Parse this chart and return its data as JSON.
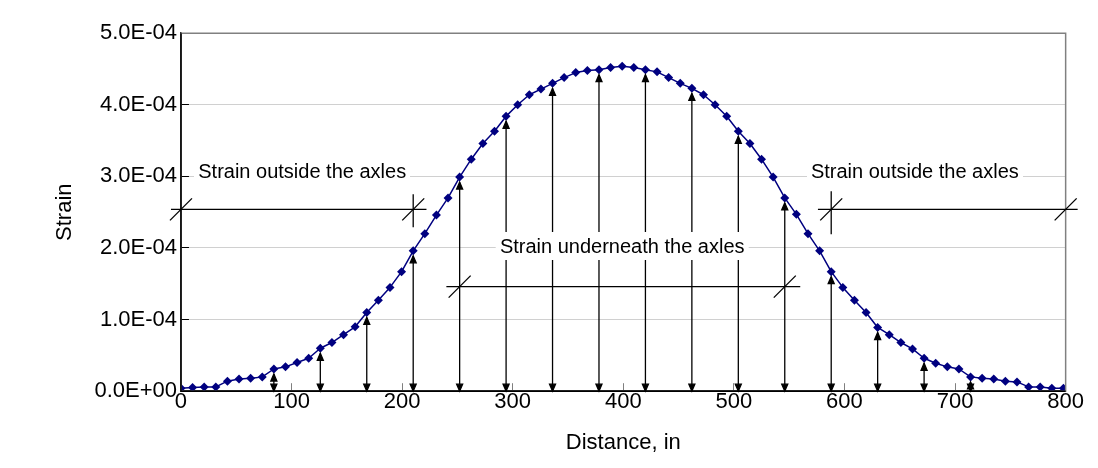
{
  "chart_data": {
    "type": "line",
    "xlabel": "Distance, in",
    "ylabel": "Strain",
    "x": [
      0,
      10.5,
      21,
      31.5,
      42,
      52.5,
      63,
      73.5,
      84,
      94.5,
      105,
      115.5,
      126,
      136.5,
      147,
      157.5,
      168,
      178.5,
      189,
      199.5,
      210,
      220.5,
      231,
      241.5,
      252,
      262.5,
      273,
      283.5,
      294,
      304.5,
      315,
      325.5,
      336,
      346.5,
      357,
      367.5,
      378,
      388.5,
      399,
      409.5,
      420,
      430.5,
      441,
      451.5,
      462,
      472.5,
      483,
      493.5,
      504,
      514.5,
      525,
      535.5,
      546,
      556.5,
      567,
      577.5,
      588,
      598.5,
      609,
      619.5,
      630,
      640.5,
      651,
      661.5,
      672,
      682.5,
      693,
      703.5,
      714,
      724.5,
      735,
      745.5,
      756,
      766.5,
      777,
      787.5,
      798
    ],
    "series": [
      {
        "color": "#000080",
        "values": [
          4e-06,
          5e-06,
          6e-06,
          6e-06,
          1.4e-05,
          1.7e-05,
          1.8e-05,
          2e-05,
          3.1e-05,
          3.4e-05,
          4e-05,
          4.6e-05,
          6e-05,
          6.8e-05,
          7.9e-05,
          9e-05,
          0.00011,
          0.000127,
          0.000145,
          0.000167,
          0.000196,
          0.00022,
          0.000246,
          0.00027,
          0.000299,
          0.000324,
          0.000346,
          0.000363,
          0.000384,
          0.0004,
          0.000414,
          0.000422,
          0.00043,
          0.000438,
          0.000445,
          0.000448,
          0.000449,
          0.000452,
          0.000454,
          0.000452,
          0.000449,
          0.000446,
          0.000438,
          0.00043,
          0.000423,
          0.000414,
          0.0004,
          0.000384,
          0.000363,
          0.000346,
          0.000324,
          0.000299,
          0.00027,
          0.000247,
          0.00022,
          0.000196,
          0.000167,
          0.000145,
          0.000127,
          0.00011,
          8.9e-05,
          7.9e-05,
          6.8e-05,
          5.9e-05,
          4.6e-05,
          3.9e-05,
          3.4e-05,
          3.1e-05,
          2e-05,
          1.8e-05,
          1.7e-05,
          1.4e-05,
          1.3e-05,
          6e-06,
          6e-06,
          4e-06,
          4e-06
        ]
      }
    ],
    "xlim": [
      0,
      800
    ],
    "xticks": [
      0,
      100,
      200,
      300,
      400,
      500,
      600,
      700,
      800
    ],
    "ylim": [
      0,
      0.0005
    ],
    "yticks": [
      {
        "value": 0,
        "label": "0.0E+00"
      },
      {
        "value": 0.0001,
        "label": "1.0E-04"
      },
      {
        "value": 0.0002,
        "label": "2.0E-04"
      },
      {
        "value": 0.0003,
        "label": "3.0E-04"
      },
      {
        "value": 0.0004,
        "label": "4.0E-04"
      },
      {
        "value": 0.0005,
        "label": "5.0E-04"
      }
    ],
    "grid": "y",
    "marker": "diamond",
    "line_style": "solid",
    "legend": false,
    "annotations": [
      "Strain outside the axles",
      "Strain underneath the axles",
      "Strain outside the axles"
    ]
  }
}
